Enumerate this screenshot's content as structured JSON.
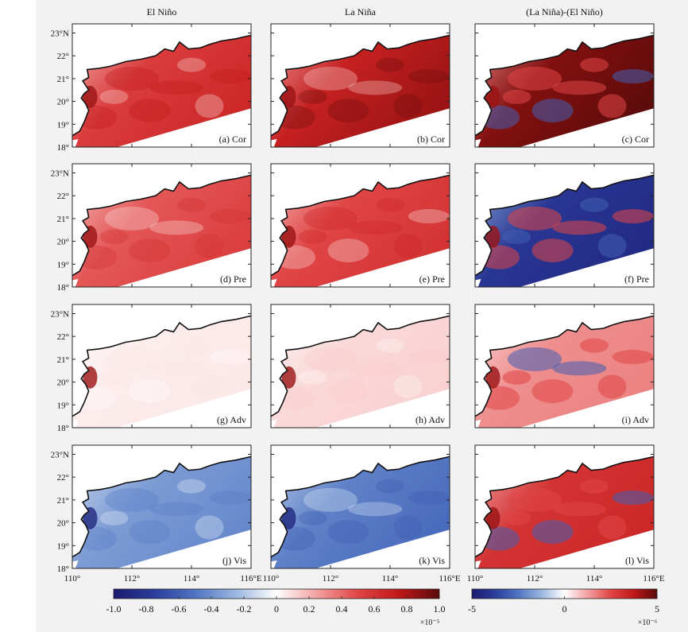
{
  "chart_data": {
    "type": "heatmap",
    "columns": [
      "El Niño",
      "La Niña",
      "(La Niña)-(El Niño)"
    ],
    "row_terms": [
      "Cor",
      "Pre",
      "Adv",
      "Vis"
    ],
    "panel_labels": [
      [
        "(a) Cor",
        "(b) Cor",
        "(c) Cor"
      ],
      [
        "(d) Pre",
        "(e) Pre",
        "(f) Pre"
      ],
      [
        "(g) Adv",
        "(h) Adv",
        "(i) Adv"
      ],
      [
        "(j) Vis",
        "(k) Vis",
        "(l) Vis"
      ]
    ],
    "lat_ticks": [
      {
        "value": 23,
        "label": "23°N"
      },
      {
        "value": 22,
        "label": "22°"
      },
      {
        "value": 21,
        "label": "21°"
      },
      {
        "value": 20,
        "label": "20°"
      },
      {
        "value": 19,
        "label": "19°"
      },
      {
        "value": 18,
        "label": "18°"
      }
    ],
    "lon_tick_labels": [
      "110°",
      "112°",
      "114°",
      "116°E"
    ],
    "lon_ticks": [
      110,
      112,
      114,
      116
    ],
    "lon_range": [
      110,
      116
    ],
    "lat_range": [
      18,
      23.4
    ],
    "panel_mean_values": [
      [
        0.55,
        0.7,
        0.9
      ],
      [
        0.45,
        0.5,
        -0.8
      ],
      [
        0.05,
        0.1,
        0.3
      ],
      [
        -0.35,
        -0.45,
        0.6
      ]
    ],
    "colorbar_left": {
      "range": [
        -1.0,
        1.0
      ],
      "ticks": [
        "-1.0",
        "-0.8",
        "-0.6",
        "-0.4",
        "-0.2",
        "0",
        "0.2",
        "0.4",
        "0.6",
        "0.8",
        "1.0"
      ],
      "scale_label": "×10⁻⁵",
      "colors": [
        "#1a1a6e",
        "#2b3d9c",
        "#4f74c2",
        "#9bb6e0",
        "#ffffff",
        "#f2a0a0",
        "#e04545",
        "#c01818",
        "#5a0a0a"
      ]
    },
    "colorbar_right": {
      "range": [
        -5,
        5
      ],
      "ticks": [
        "-5",
        "0",
        "5"
      ],
      "scale_label": "×10⁻⁶",
      "colors": [
        "#1a1a6e",
        "#2b3d9c",
        "#4f74c2",
        "#9bb6e0",
        "#ffffff",
        "#f2a0a0",
        "#e04545",
        "#c01818",
        "#5a0a0a"
      ]
    }
  }
}
